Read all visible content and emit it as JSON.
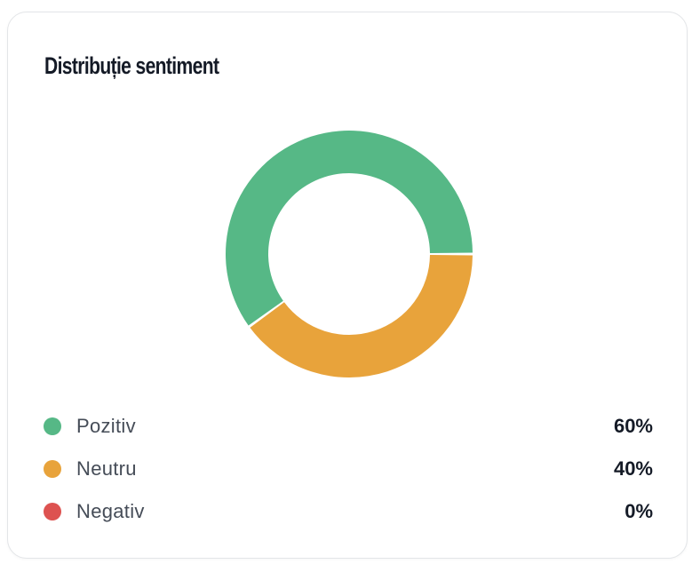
{
  "card": {
    "title": "Distribuție sentiment"
  },
  "chart_data": {
    "type": "pie",
    "variant": "donut",
    "title": "Distribuție sentiment",
    "categories": [
      "Pozitiv",
      "Neutru",
      "Negativ"
    ],
    "values": [
      60,
      40,
      0
    ],
    "value_labels": [
      "60%",
      "40%",
      "0%"
    ],
    "colors": [
      "#56b886",
      "#e8a33b",
      "#dd5250"
    ],
    "legend_position": "bottom"
  },
  "legend": [
    {
      "label": "Pozitiv",
      "value": "60%",
      "color": "#56b886"
    },
    {
      "label": "Neutru",
      "value": "40%",
      "color": "#e8a33b"
    },
    {
      "label": "Negativ",
      "value": "0%",
      "color": "#dd5250"
    }
  ]
}
